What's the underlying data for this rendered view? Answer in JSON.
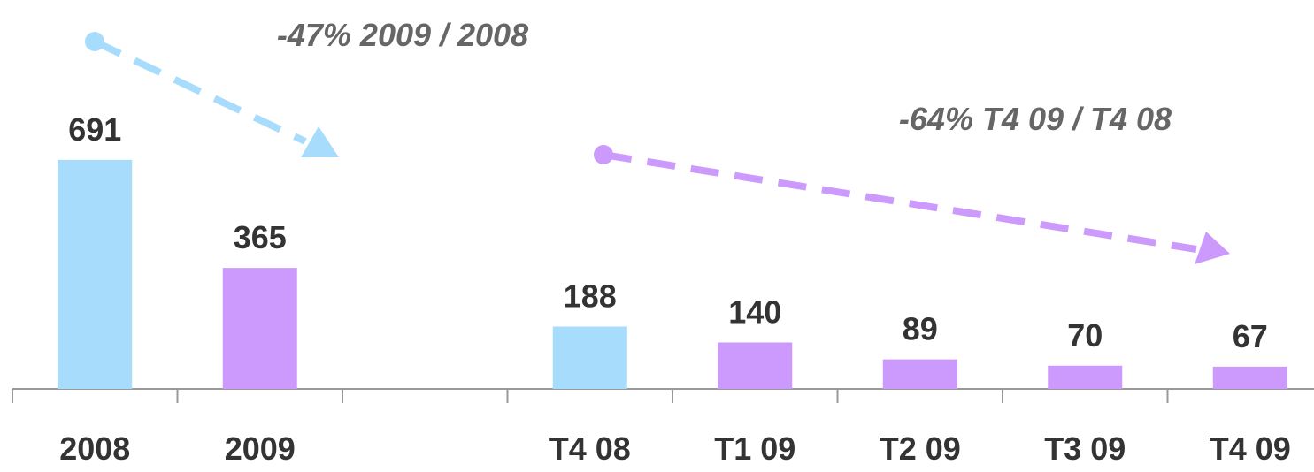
{
  "chart_data": {
    "type": "bar",
    "categories": [
      "2008",
      "2009",
      null,
      "T4 08",
      "T1 09",
      "T2 09",
      "T3 09",
      "T4 09"
    ],
    "values": [
      691,
      365,
      null,
      188,
      140,
      89,
      70,
      67
    ],
    "colors": [
      "#a8dcfc",
      "#cc99fc",
      null,
      "#a8dcfc",
      "#cc99fc",
      "#cc99fc",
      "#cc99fc",
      "#cc99fc"
    ],
    "ylim": [
      0,
      1000
    ],
    "annotations": [
      "-47% 2009 / 2008",
      "-64% T4 09 / T4 08"
    ]
  }
}
